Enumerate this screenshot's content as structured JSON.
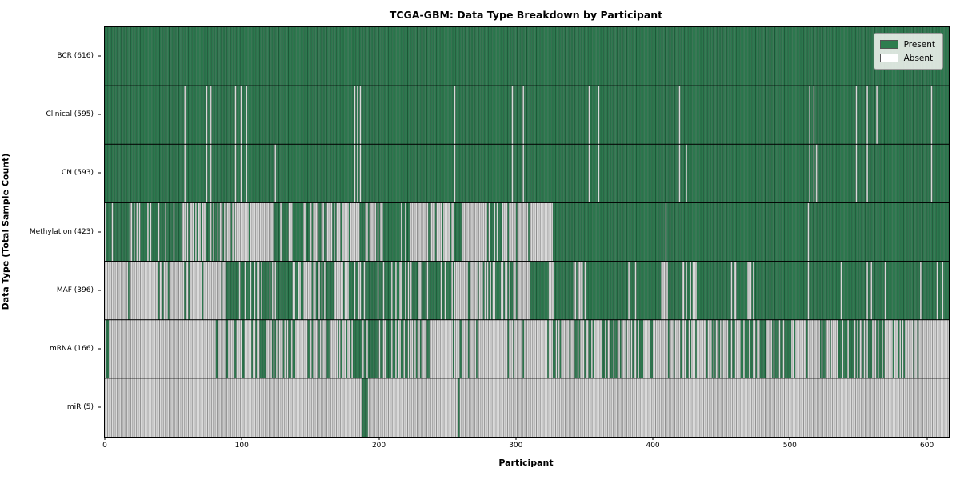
{
  "chart_data": {
    "type": "heatmap",
    "title": "TCGA-GBM: Data Type Breakdown by Participant",
    "xlabel": "Participant",
    "ylabel": "Data Type (Total Sample Count)",
    "n_participants": 616,
    "xlim": [
      0,
      616
    ],
    "x_ticks": [
      0,
      100,
      200,
      300,
      400,
      500,
      600
    ],
    "legend_entries": [
      {
        "label": "Present",
        "value": "present"
      },
      {
        "label": "Absent",
        "value": "absent"
      }
    ],
    "colors": {
      "present_face": "#35895a",
      "present_edge": "#1c5737",
      "absent_face": "#ffffff",
      "absent_edge": "#8f8f8f",
      "row_separator": "#000000",
      "legend_present_swatch": "#2e7d4f",
      "legend_absent_swatch": "#ffffff"
    },
    "rows": [
      {
        "label": "BCR (616)",
        "data_type": "BCR",
        "count": 616,
        "blocks": [
          [
            0,
            616,
            1
          ]
        ]
      },
      {
        "label": "Clinical (595)",
        "data_type": "Clinical",
        "count": 595,
        "base": 1,
        "absent": [
          58,
          74,
          77,
          95,
          99,
          103,
          182,
          184,
          186,
          255,
          297,
          305,
          353,
          360,
          419,
          514,
          517,
          548,
          556,
          563,
          603
        ]
      },
      {
        "label": "CN (593)",
        "data_type": "CN",
        "count": 593,
        "base": 1,
        "absent": [
          58,
          74,
          77,
          95,
          99,
          103,
          124,
          182,
          184,
          186,
          255,
          297,
          305,
          353,
          360,
          419,
          424,
          514,
          517,
          519,
          548,
          556,
          603
        ]
      },
      {
        "label": "Methylation (423)",
        "data_type": "Methylation",
        "count": 423,
        "blocks": [
          [
            0,
            55,
            0.75
          ],
          [
            55,
            90,
            0.45
          ],
          [
            90,
            123,
            0.1
          ],
          [
            123,
            152,
            0.7
          ],
          [
            152,
            175,
            0.4
          ],
          [
            175,
            185,
            0.15
          ],
          [
            185,
            205,
            0.35
          ],
          [
            205,
            224,
            0.9
          ],
          [
            224,
            255,
            0.2
          ],
          [
            255,
            261,
            1
          ],
          [
            261,
            277,
            0.05
          ],
          [
            277,
            289,
            0.6
          ],
          [
            289,
            310,
            0.15
          ],
          [
            310,
            327,
            0.05
          ],
          [
            327,
            409,
            1
          ],
          [
            409,
            410,
            0
          ],
          [
            410,
            513,
            1
          ],
          [
            513,
            514,
            0
          ],
          [
            514,
            616,
            1
          ]
        ]
      },
      {
        "label": "MAF (396)",
        "data_type": "MAF",
        "count": 396,
        "blocks": [
          [
            0,
            17,
            0.08
          ],
          [
            17,
            18,
            1
          ],
          [
            18,
            88,
            0.1
          ],
          [
            88,
            106,
            0.8
          ],
          [
            106,
            125,
            0.45
          ],
          [
            125,
            137,
            0.85
          ],
          [
            137,
            154,
            0.35
          ],
          [
            154,
            167,
            0.7
          ],
          [
            167,
            176,
            0.25
          ],
          [
            176,
            187,
            0.6
          ],
          [
            187,
            215,
            0.75
          ],
          [
            215,
            224,
            0.4
          ],
          [
            224,
            253,
            0.85
          ],
          [
            253,
            283,
            0.2
          ],
          [
            283,
            298,
            0.55
          ],
          [
            298,
            310,
            0.3
          ],
          [
            310,
            322,
            0.95
          ],
          [
            322,
            329,
            0.3
          ],
          [
            329,
            342,
            0.95
          ],
          [
            342,
            352,
            0.2
          ],
          [
            352,
            387,
            0.95
          ],
          [
            387,
            388,
            0
          ],
          [
            388,
            407,
            0.95
          ],
          [
            407,
            411,
            0.3
          ],
          [
            411,
            421,
            0.95
          ],
          [
            421,
            432,
            0.4
          ],
          [
            432,
            469,
            0.95
          ],
          [
            469,
            475,
            0.3
          ],
          [
            475,
            537,
            0.95
          ],
          [
            537,
            541,
            0.3
          ],
          [
            541,
            616,
            0.96
          ]
        ]
      },
      {
        "label": "mRNA (166)",
        "data_type": "mRNA",
        "count": 166,
        "blocks": [
          [
            0,
            88,
            0.05
          ],
          [
            88,
            127,
            0.45
          ],
          [
            127,
            175,
            0.25
          ],
          [
            175,
            195,
            0.7
          ],
          [
            195,
            238,
            0.5
          ],
          [
            238,
            310,
            0.12
          ],
          [
            310,
            350,
            0.15
          ],
          [
            350,
            375,
            0.5
          ],
          [
            375,
            455,
            0.3
          ],
          [
            455,
            500,
            0.55
          ],
          [
            500,
            540,
            0.35
          ],
          [
            540,
            565,
            0.55
          ],
          [
            565,
            585,
            0.3
          ],
          [
            585,
            590,
            0.1
          ],
          [
            590,
            591,
            1
          ],
          [
            591,
            616,
            0.05
          ]
        ]
      },
      {
        "label": "miR (5)",
        "data_type": "miR",
        "count": 5,
        "base": 0,
        "present": [
          188,
          189,
          190,
          191,
          258
        ]
      }
    ]
  }
}
